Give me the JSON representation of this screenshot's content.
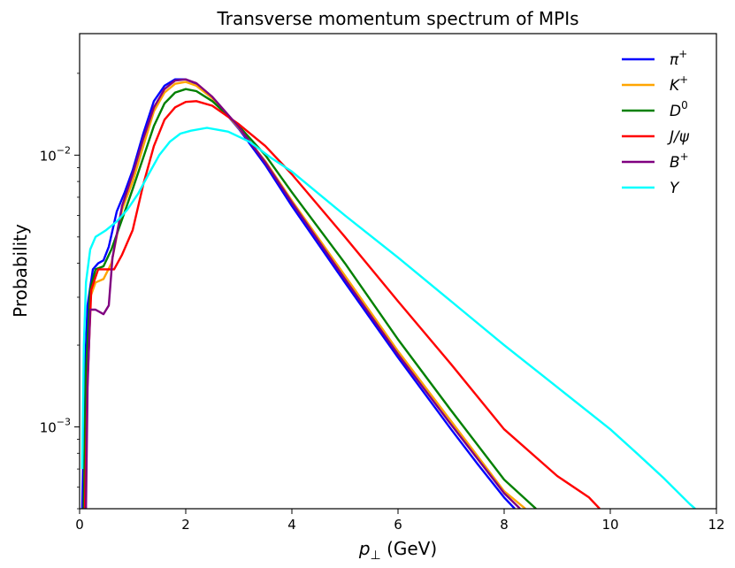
{
  "chart_data": {
    "type": "line",
    "title": "Transverse momentum spectrum of MPIs",
    "xlabel": "p⊥ (GeV)",
    "xlabel_symbol": "p",
    "xlabel_subscript": "⊥",
    "xlabel_unit": " (GeV)",
    "ylabel": "Probability",
    "xlim": [
      0,
      12
    ],
    "ylim": [
      0.0005,
      0.028
    ],
    "yscale": "log",
    "x_ticks": [
      0,
      2,
      4,
      6,
      8,
      10,
      12
    ],
    "x_tick_labels": [
      "0",
      "2",
      "4",
      "6",
      "8",
      "10",
      "12"
    ],
    "y_ticks": [
      0.001,
      0.01
    ],
    "y_tick_labels": [
      {
        "base": "10",
        "exp": "−3"
      },
      {
        "base": "10",
        "exp": "−2"
      }
    ],
    "legend_position": "top-right",
    "series": [
      {
        "name": "π+",
        "symbol": "π",
        "sup": "+",
        "color": "#0000ff",
        "points": [
          [
            0.05,
            0.0005
          ],
          [
            0.1,
            0.0016
          ],
          [
            0.15,
            0.0028
          ],
          [
            0.25,
            0.0038
          ],
          [
            0.35,
            0.004
          ],
          [
            0.45,
            0.0041
          ],
          [
            0.55,
            0.0046
          ],
          [
            0.7,
            0.0062
          ],
          [
            0.85,
            0.0073
          ],
          [
            1.0,
            0.0088
          ],
          [
            1.2,
            0.012
          ],
          [
            1.4,
            0.0158
          ],
          [
            1.6,
            0.018
          ],
          [
            1.8,
            0.019
          ],
          [
            2.0,
            0.019
          ],
          [
            2.2,
            0.0183
          ],
          [
            2.5,
            0.0163
          ],
          [
            3.0,
            0.0125
          ],
          [
            3.5,
            0.0092
          ],
          [
            4.0,
            0.0065
          ],
          [
            5.0,
            0.0034
          ],
          [
            6.0,
            0.0018
          ],
          [
            7.0,
            0.00098
          ],
          [
            7.5,
            0.00073
          ],
          [
            8.0,
            0.00055
          ],
          [
            8.2,
            0.0005
          ]
        ]
      },
      {
        "name": "K+",
        "symbol": "K",
        "sup": "+",
        "color": "#ffa500",
        "points": [
          [
            0.08,
            0.0005
          ],
          [
            0.12,
            0.0015
          ],
          [
            0.2,
            0.003
          ],
          [
            0.3,
            0.0034
          ],
          [
            0.45,
            0.0035
          ],
          [
            0.6,
            0.004
          ],
          [
            0.8,
            0.0063
          ],
          [
            1.0,
            0.008
          ],
          [
            1.2,
            0.0108
          ],
          [
            1.4,
            0.0145
          ],
          [
            1.6,
            0.017
          ],
          [
            1.8,
            0.0183
          ],
          [
            2.0,
            0.0186
          ],
          [
            2.2,
            0.018
          ],
          [
            2.5,
            0.0162
          ],
          [
            3.0,
            0.0126
          ],
          [
            3.5,
            0.0095
          ],
          [
            4.0,
            0.0068
          ],
          [
            5.0,
            0.0036
          ],
          [
            6.0,
            0.0019
          ],
          [
            7.0,
            0.00105
          ],
          [
            8.0,
            0.00058
          ],
          [
            8.4,
            0.0005
          ]
        ]
      },
      {
        "name": "D0",
        "symbol": "D",
        "sup": "0",
        "color": "#008000",
        "points": [
          [
            0.08,
            0.0005
          ],
          [
            0.12,
            0.0016
          ],
          [
            0.2,
            0.0032
          ],
          [
            0.3,
            0.0038
          ],
          [
            0.45,
            0.0039
          ],
          [
            0.6,
            0.0045
          ],
          [
            0.8,
            0.0058
          ],
          [
            1.0,
            0.0075
          ],
          [
            1.2,
            0.0098
          ],
          [
            1.4,
            0.0128
          ],
          [
            1.6,
            0.0155
          ],
          [
            1.8,
            0.017
          ],
          [
            2.0,
            0.0175
          ],
          [
            2.2,
            0.0172
          ],
          [
            2.5,
            0.0158
          ],
          [
            3.0,
            0.0128
          ],
          [
            3.5,
            0.01
          ],
          [
            4.0,
            0.0073
          ],
          [
            5.0,
            0.004
          ],
          [
            6.0,
            0.0021
          ],
          [
            7.0,
            0.00115
          ],
          [
            8.0,
            0.00064
          ],
          [
            8.6,
            0.0005
          ]
        ]
      },
      {
        "name": "J/ψ",
        "symbol": "J/ψ",
        "sup": "",
        "color": "#ff0000",
        "points": [
          [
            0.1,
            0.0005
          ],
          [
            0.15,
            0.0015
          ],
          [
            0.22,
            0.0032
          ],
          [
            0.35,
            0.0038
          ],
          [
            0.5,
            0.0038
          ],
          [
            0.65,
            0.0038
          ],
          [
            0.8,
            0.0043
          ],
          [
            1.0,
            0.0053
          ],
          [
            1.2,
            0.0078
          ],
          [
            1.4,
            0.0108
          ],
          [
            1.6,
            0.0135
          ],
          [
            1.8,
            0.015
          ],
          [
            2.0,
            0.0157
          ],
          [
            2.2,
            0.0158
          ],
          [
            2.5,
            0.0152
          ],
          [
            3.0,
            0.013
          ],
          [
            3.5,
            0.0108
          ],
          [
            4.0,
            0.0085
          ],
          [
            5.0,
            0.005
          ],
          [
            6.0,
            0.0029
          ],
          [
            7.0,
            0.0017
          ],
          [
            8.0,
            0.00098
          ],
          [
            9.0,
            0.00066
          ],
          [
            9.6,
            0.00055
          ],
          [
            9.8,
            0.0005
          ]
        ]
      },
      {
        "name": "B+",
        "symbol": "B",
        "sup": "+",
        "color": "#800080",
        "points": [
          [
            0.12,
            0.0005
          ],
          [
            0.15,
            0.0014
          ],
          [
            0.2,
            0.0027
          ],
          [
            0.3,
            0.0027
          ],
          [
            0.45,
            0.0026
          ],
          [
            0.55,
            0.0028
          ],
          [
            0.62,
            0.0042
          ],
          [
            0.8,
            0.0065
          ],
          [
            1.0,
            0.0085
          ],
          [
            1.2,
            0.0115
          ],
          [
            1.4,
            0.015
          ],
          [
            1.6,
            0.0175
          ],
          [
            1.8,
            0.0188
          ],
          [
            2.0,
            0.019
          ],
          [
            2.2,
            0.0184
          ],
          [
            2.5,
            0.0164
          ],
          [
            3.0,
            0.0127
          ],
          [
            3.5,
            0.0094
          ],
          [
            4.0,
            0.0067
          ],
          [
            5.0,
            0.0035
          ],
          [
            6.0,
            0.00185
          ],
          [
            7.0,
            0.00102
          ],
          [
            8.0,
            0.00057
          ],
          [
            8.3,
            0.0005
          ]
        ]
      },
      {
        "name": "Υ",
        "symbol": "Υ",
        "sup": "",
        "color": "#00ffff",
        "points": [
          [
            0.05,
            0.0007
          ],
          [
            0.08,
            0.002
          ],
          [
            0.12,
            0.0034
          ],
          [
            0.2,
            0.0045
          ],
          [
            0.3,
            0.005
          ],
          [
            0.5,
            0.0053
          ],
          [
            0.7,
            0.0057
          ],
          [
            0.9,
            0.0063
          ],
          [
            1.1,
            0.0072
          ],
          [
            1.3,
            0.0085
          ],
          [
            1.5,
            0.01
          ],
          [
            1.7,
            0.0112
          ],
          [
            1.9,
            0.012
          ],
          [
            2.1,
            0.0123
          ],
          [
            2.4,
            0.0126
          ],
          [
            2.8,
            0.0122
          ],
          [
            3.2,
            0.0112
          ],
          [
            3.6,
            0.0098
          ],
          [
            4.0,
            0.0087
          ],
          [
            5.0,
            0.006
          ],
          [
            6.0,
            0.0042
          ],
          [
            7.0,
            0.0029
          ],
          [
            8.0,
            0.002
          ],
          [
            9.0,
            0.0014
          ],
          [
            10.0,
            0.00098
          ],
          [
            10.5,
            0.0008
          ],
          [
            11.0,
            0.00065
          ],
          [
            11.5,
            0.00052
          ],
          [
            11.6,
            0.0005
          ]
        ]
      }
    ]
  }
}
